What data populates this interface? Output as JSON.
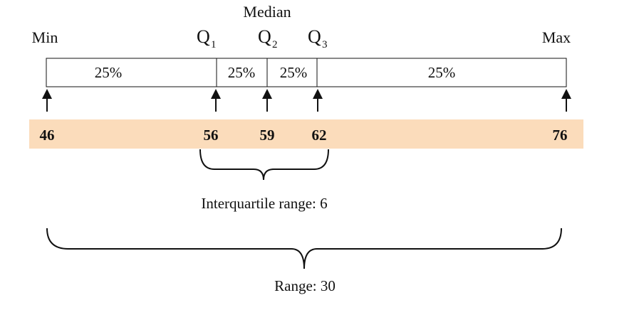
{
  "labels": {
    "min": "Min",
    "max": "Max",
    "median": "Median",
    "q1": "Q",
    "q1_sub": "1",
    "q2": "Q",
    "q2_sub": "2",
    "q3": "Q",
    "q3_sub": "3"
  },
  "segments": [
    "25%",
    "25%",
    "25%",
    "25%"
  ],
  "values": {
    "min": "46",
    "q1": "56",
    "q2": "59",
    "q3": "62",
    "max": "76"
  },
  "iqr_label": "Interquartile range: 6",
  "range_label": "Range: 30",
  "colors": {
    "band": "#fbdcbb",
    "stroke": "#111111"
  }
}
